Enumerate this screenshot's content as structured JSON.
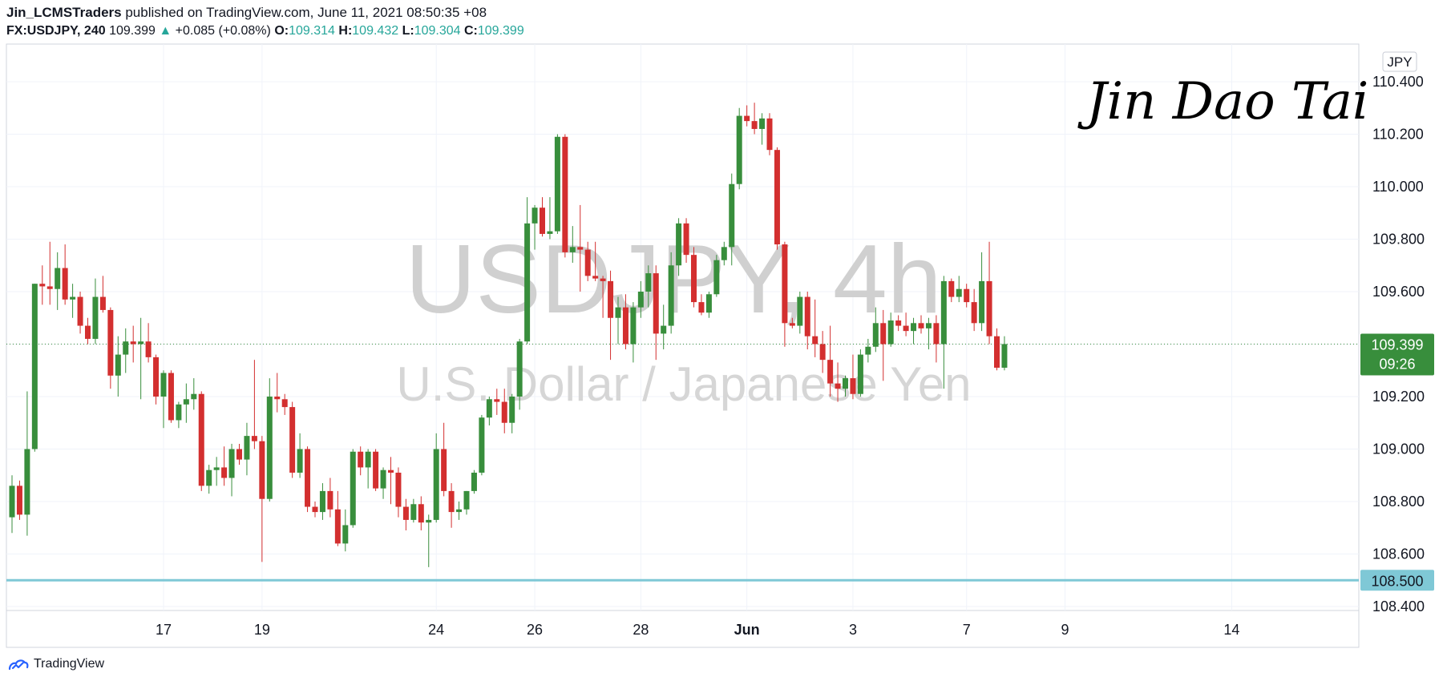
{
  "header": {
    "author": "Jin_LCMSTraders",
    "published_text": "published on TradingView.com, June 11, 2021 08:50:35 +08",
    "symbol": "FX:USDJPY, 240",
    "last_price": "109.399",
    "change_arrow": "▲",
    "change": "+0.085 (+0.08%)",
    "o_label": "O:",
    "o_value": "109.314",
    "h_label": "H:",
    "h_value": "109.432",
    "l_label": "L:",
    "l_value": "109.304",
    "c_label": "C:",
    "c_value": "109.399"
  },
  "watermark": {
    "symbol_text": "USDJPY, 4h",
    "name_text": "U.S. Dollar / Japanese Yen"
  },
  "signature": "Jin Dao Tai",
  "currency_badge": "JPY",
  "price_tag": {
    "price": "109.399",
    "countdown": "09:26",
    "color": "#388e3c"
  },
  "level_tag": {
    "price": "108.500",
    "color": "#7fc8d6"
  },
  "footer": {
    "brand": "TradingView"
  },
  "colors": {
    "up": "#388e3c",
    "down": "#d32f2f",
    "grid": "#f0f3fa",
    "axis_text": "#131722",
    "level_line": "#7fc8d6"
  },
  "chart_data": {
    "type": "candlestick",
    "title": "USDJPY, 4h",
    "subtitle": "U.S. Dollar / Japanese Yen",
    "ylim": [
      108.35,
      110.55
    ],
    "y_ticks": [
      "108.400",
      "108.600",
      "108.800",
      "109.000",
      "109.200",
      "109.400",
      "109.600",
      "109.800",
      "110.000",
      "110.200",
      "110.400"
    ],
    "x_ticks": [
      {
        "label": "17",
        "index": 20
      },
      {
        "label": "19",
        "index": 33
      },
      {
        "label": "24",
        "index": 56
      },
      {
        "label": "26",
        "index": 69
      },
      {
        "label": "28",
        "index": 83
      },
      {
        "label": "Jun",
        "index": 97
      },
      {
        "label": "3",
        "index": 111
      },
      {
        "label": "7",
        "index": 126
      },
      {
        "label": "9",
        "index": 139
      },
      {
        "label": "14",
        "index": 161
      }
    ],
    "horizontal_level": 108.5,
    "candles": [
      {
        "o": 108.74,
        "h": 108.9,
        "l": 108.68,
        "c": 108.86
      },
      {
        "o": 108.86,
        "h": 108.88,
        "l": 108.73,
        "c": 108.75
      },
      {
        "o": 108.75,
        "h": 109.22,
        "l": 108.67,
        "c": 109.0
      },
      {
        "o": 109.0,
        "h": 109.63,
        "l": 108.99,
        "c": 109.63
      },
      {
        "o": 109.63,
        "h": 109.7,
        "l": 109.55,
        "c": 109.62
      },
      {
        "o": 109.62,
        "h": 109.79,
        "l": 109.55,
        "c": 109.61
      },
      {
        "o": 109.61,
        "h": 109.75,
        "l": 109.53,
        "c": 109.69
      },
      {
        "o": 109.69,
        "h": 109.78,
        "l": 109.55,
        "c": 109.57
      },
      {
        "o": 109.57,
        "h": 109.63,
        "l": 109.5,
        "c": 109.58
      },
      {
        "o": 109.58,
        "h": 109.6,
        "l": 109.44,
        "c": 109.47
      },
      {
        "o": 109.47,
        "h": 109.5,
        "l": 109.4,
        "c": 109.42
      },
      {
        "o": 109.42,
        "h": 109.65,
        "l": 109.4,
        "c": 109.58
      },
      {
        "o": 109.58,
        "h": 109.66,
        "l": 109.52,
        "c": 109.53
      },
      {
        "o": 109.53,
        "h": 109.54,
        "l": 109.23,
        "c": 109.28
      },
      {
        "o": 109.28,
        "h": 109.43,
        "l": 109.2,
        "c": 109.36
      },
      {
        "o": 109.36,
        "h": 109.46,
        "l": 109.29,
        "c": 109.41
      },
      {
        "o": 109.41,
        "h": 109.47,
        "l": 109.33,
        "c": 109.4
      },
      {
        "o": 109.4,
        "h": 109.5,
        "l": 109.19,
        "c": 109.41
      },
      {
        "o": 109.41,
        "h": 109.48,
        "l": 109.33,
        "c": 109.35
      },
      {
        "o": 109.35,
        "h": 109.36,
        "l": 109.17,
        "c": 109.2
      },
      {
        "o": 109.2,
        "h": 109.3,
        "l": 109.08,
        "c": 109.29
      },
      {
        "o": 109.29,
        "h": 109.3,
        "l": 109.1,
        "c": 109.11
      },
      {
        "o": 109.11,
        "h": 109.18,
        "l": 109.08,
        "c": 109.17
      },
      {
        "o": 109.17,
        "h": 109.25,
        "l": 109.1,
        "c": 109.19
      },
      {
        "o": 109.19,
        "h": 109.27,
        "l": 109.15,
        "c": 109.21
      },
      {
        "o": 109.21,
        "h": 109.22,
        "l": 108.84,
        "c": 108.86
      },
      {
        "o": 108.86,
        "h": 108.94,
        "l": 108.83,
        "c": 108.92
      },
      {
        "o": 108.92,
        "h": 108.97,
        "l": 108.86,
        "c": 108.93
      },
      {
        "o": 108.93,
        "h": 109.01,
        "l": 108.86,
        "c": 108.89
      },
      {
        "o": 108.89,
        "h": 109.02,
        "l": 108.82,
        "c": 109.0
      },
      {
        "o": 109.0,
        "h": 109.02,
        "l": 108.94,
        "c": 108.96
      },
      {
        "o": 108.96,
        "h": 109.1,
        "l": 108.9,
        "c": 109.05
      },
      {
        "o": 109.05,
        "h": 109.34,
        "l": 109.0,
        "c": 109.03
      },
      {
        "o": 109.03,
        "h": 109.05,
        "l": 108.57,
        "c": 108.81
      },
      {
        "o": 108.81,
        "h": 109.27,
        "l": 108.8,
        "c": 109.2
      },
      {
        "o": 109.2,
        "h": 109.29,
        "l": 109.14,
        "c": 109.19
      },
      {
        "o": 109.19,
        "h": 109.21,
        "l": 109.13,
        "c": 109.16
      },
      {
        "o": 109.16,
        "h": 109.18,
        "l": 108.89,
        "c": 108.91
      },
      {
        "o": 108.91,
        "h": 109.06,
        "l": 108.89,
        "c": 109.0
      },
      {
        "o": 109.0,
        "h": 109.01,
        "l": 108.76,
        "c": 108.78
      },
      {
        "o": 108.78,
        "h": 108.8,
        "l": 108.74,
        "c": 108.76
      },
      {
        "o": 108.76,
        "h": 108.87,
        "l": 108.73,
        "c": 108.84
      },
      {
        "o": 108.84,
        "h": 108.89,
        "l": 108.74,
        "c": 108.77
      },
      {
        "o": 108.77,
        "h": 108.84,
        "l": 108.63,
        "c": 108.64
      },
      {
        "o": 108.64,
        "h": 108.77,
        "l": 108.61,
        "c": 108.71
      },
      {
        "o": 108.71,
        "h": 109.0,
        "l": 108.7,
        "c": 108.99
      },
      {
        "o": 108.99,
        "h": 109.01,
        "l": 108.9,
        "c": 108.93
      },
      {
        "o": 108.93,
        "h": 109.0,
        "l": 108.85,
        "c": 108.99
      },
      {
        "o": 108.99,
        "h": 109.0,
        "l": 108.84,
        "c": 108.85
      },
      {
        "o": 108.85,
        "h": 108.93,
        "l": 108.81,
        "c": 108.92
      },
      {
        "o": 108.92,
        "h": 108.97,
        "l": 108.79,
        "c": 108.91
      },
      {
        "o": 108.91,
        "h": 108.93,
        "l": 108.74,
        "c": 108.78
      },
      {
        "o": 108.78,
        "h": 108.81,
        "l": 108.69,
        "c": 108.73
      },
      {
        "o": 108.73,
        "h": 108.81,
        "l": 108.72,
        "c": 108.79
      },
      {
        "o": 108.79,
        "h": 108.82,
        "l": 108.69,
        "c": 108.72
      },
      {
        "o": 108.72,
        "h": 108.75,
        "l": 108.55,
        "c": 108.73
      },
      {
        "o": 108.73,
        "h": 109.06,
        "l": 108.72,
        "c": 109.0
      },
      {
        "o": 109.0,
        "h": 109.1,
        "l": 108.82,
        "c": 108.84
      },
      {
        "o": 108.84,
        "h": 108.87,
        "l": 108.7,
        "c": 108.76
      },
      {
        "o": 108.76,
        "h": 108.8,
        "l": 108.73,
        "c": 108.77
      },
      {
        "o": 108.77,
        "h": 108.84,
        "l": 108.75,
        "c": 108.84
      },
      {
        "o": 108.84,
        "h": 108.92,
        "l": 108.83,
        "c": 108.91
      },
      {
        "o": 108.91,
        "h": 109.13,
        "l": 108.9,
        "c": 109.12
      },
      {
        "o": 109.12,
        "h": 109.2,
        "l": 109.09,
        "c": 109.19
      },
      {
        "o": 109.19,
        "h": 109.23,
        "l": 109.13,
        "c": 109.18
      },
      {
        "o": 109.18,
        "h": 109.23,
        "l": 109.06,
        "c": 109.1
      },
      {
        "o": 109.1,
        "h": 109.21,
        "l": 109.06,
        "c": 109.2
      },
      {
        "o": 109.2,
        "h": 109.42,
        "l": 109.15,
        "c": 109.41
      },
      {
        "o": 109.41,
        "h": 109.96,
        "l": 109.4,
        "c": 109.86
      },
      {
        "o": 109.86,
        "h": 109.93,
        "l": 109.76,
        "c": 109.92
      },
      {
        "o": 109.92,
        "h": 109.96,
        "l": 109.81,
        "c": 109.82
      },
      {
        "o": 109.82,
        "h": 109.96,
        "l": 109.8,
        "c": 109.83
      },
      {
        "o": 109.83,
        "h": 110.2,
        "l": 109.82,
        "c": 110.19
      },
      {
        "o": 110.19,
        "h": 110.2,
        "l": 109.73,
        "c": 109.75
      },
      {
        "o": 109.75,
        "h": 109.85,
        "l": 109.71,
        "c": 109.77
      },
      {
        "o": 109.77,
        "h": 109.93,
        "l": 109.6,
        "c": 109.76
      },
      {
        "o": 109.76,
        "h": 109.79,
        "l": 109.64,
        "c": 109.66
      },
      {
        "o": 109.66,
        "h": 109.79,
        "l": 109.64,
        "c": 109.65
      },
      {
        "o": 109.65,
        "h": 109.66,
        "l": 109.5,
        "c": 109.64
      },
      {
        "o": 109.64,
        "h": 109.68,
        "l": 109.34,
        "c": 109.5
      },
      {
        "o": 109.5,
        "h": 109.58,
        "l": 109.4,
        "c": 109.54
      },
      {
        "o": 109.54,
        "h": 109.59,
        "l": 109.38,
        "c": 109.4
      },
      {
        "o": 109.4,
        "h": 109.56,
        "l": 109.33,
        "c": 109.54
      },
      {
        "o": 109.54,
        "h": 109.64,
        "l": 109.5,
        "c": 109.6
      },
      {
        "o": 109.6,
        "h": 109.7,
        "l": 109.54,
        "c": 109.67
      },
      {
        "o": 109.67,
        "h": 109.7,
        "l": 109.34,
        "c": 109.44
      },
      {
        "o": 109.44,
        "h": 109.55,
        "l": 109.38,
        "c": 109.47
      },
      {
        "o": 109.47,
        "h": 109.75,
        "l": 109.44,
        "c": 109.7
      },
      {
        "o": 109.7,
        "h": 109.88,
        "l": 109.66,
        "c": 109.86
      },
      {
        "o": 109.86,
        "h": 109.88,
        "l": 109.71,
        "c": 109.74
      },
      {
        "o": 109.74,
        "h": 109.77,
        "l": 109.54,
        "c": 109.56
      },
      {
        "o": 109.56,
        "h": 109.59,
        "l": 109.51,
        "c": 109.52
      },
      {
        "o": 109.52,
        "h": 109.6,
        "l": 109.5,
        "c": 109.59
      },
      {
        "o": 109.59,
        "h": 109.74,
        "l": 109.58,
        "c": 109.72
      },
      {
        "o": 109.72,
        "h": 109.79,
        "l": 109.7,
        "c": 109.77
      },
      {
        "o": 109.77,
        "h": 110.05,
        "l": 109.7,
        "c": 110.01
      },
      {
        "o": 110.01,
        "h": 110.3,
        "l": 109.99,
        "c": 110.27
      },
      {
        "o": 110.27,
        "h": 110.31,
        "l": 110.23,
        "c": 110.25
      },
      {
        "o": 110.25,
        "h": 110.32,
        "l": 110.2,
        "c": 110.22
      },
      {
        "o": 110.22,
        "h": 110.28,
        "l": 110.16,
        "c": 110.26
      },
      {
        "o": 110.26,
        "h": 110.28,
        "l": 110.12,
        "c": 110.14
      },
      {
        "o": 110.14,
        "h": 110.15,
        "l": 109.76,
        "c": 109.78
      },
      {
        "o": 109.78,
        "h": 109.79,
        "l": 109.39,
        "c": 109.48
      },
      {
        "o": 109.48,
        "h": 109.5,
        "l": 109.46,
        "c": 109.47
      },
      {
        "o": 109.47,
        "h": 109.6,
        "l": 109.44,
        "c": 109.58
      },
      {
        "o": 109.58,
        "h": 109.6,
        "l": 109.38,
        "c": 109.43
      },
      {
        "o": 109.43,
        "h": 109.57,
        "l": 109.35,
        "c": 109.4
      },
      {
        "o": 109.4,
        "h": 109.45,
        "l": 109.29,
        "c": 109.34
      },
      {
        "o": 109.34,
        "h": 109.47,
        "l": 109.2,
        "c": 109.25
      },
      {
        "o": 109.25,
        "h": 109.33,
        "l": 109.18,
        "c": 109.23
      },
      {
        "o": 109.23,
        "h": 109.28,
        "l": 109.2,
        "c": 109.27
      },
      {
        "o": 109.27,
        "h": 109.36,
        "l": 109.19,
        "c": 109.21
      },
      {
        "o": 109.21,
        "h": 109.38,
        "l": 109.2,
        "c": 109.36
      },
      {
        "o": 109.36,
        "h": 109.42,
        "l": 109.33,
        "c": 109.39
      },
      {
        "o": 109.39,
        "h": 109.54,
        "l": 109.37,
        "c": 109.48
      },
      {
        "o": 109.48,
        "h": 109.53,
        "l": 109.26,
        "c": 109.4
      },
      {
        "o": 109.4,
        "h": 109.52,
        "l": 109.39,
        "c": 109.49
      },
      {
        "o": 109.49,
        "h": 109.51,
        "l": 109.45,
        "c": 109.47
      },
      {
        "o": 109.47,
        "h": 109.52,
        "l": 109.43,
        "c": 109.45
      },
      {
        "o": 109.45,
        "h": 109.5,
        "l": 109.4,
        "c": 109.48
      },
      {
        "o": 109.48,
        "h": 109.51,
        "l": 109.44,
        "c": 109.46
      },
      {
        "o": 109.46,
        "h": 109.5,
        "l": 109.38,
        "c": 109.48
      },
      {
        "o": 109.48,
        "h": 109.51,
        "l": 109.33,
        "c": 109.4
      },
      {
        "o": 109.4,
        "h": 109.66,
        "l": 109.23,
        "c": 109.64
      },
      {
        "o": 109.64,
        "h": 109.65,
        "l": 109.56,
        "c": 109.58
      },
      {
        "o": 109.58,
        "h": 109.66,
        "l": 109.56,
        "c": 109.61
      },
      {
        "o": 109.61,
        "h": 109.63,
        "l": 109.54,
        "c": 109.56
      },
      {
        "o": 109.56,
        "h": 109.61,
        "l": 109.45,
        "c": 109.48
      },
      {
        "o": 109.48,
        "h": 109.75,
        "l": 109.45,
        "c": 109.64
      },
      {
        "o": 109.64,
        "h": 109.79,
        "l": 109.4,
        "c": 109.43
      },
      {
        "o": 109.43,
        "h": 109.46,
        "l": 109.3,
        "c": 109.31
      },
      {
        "o": 109.31,
        "h": 109.43,
        "l": 109.3,
        "c": 109.4
      }
    ]
  }
}
